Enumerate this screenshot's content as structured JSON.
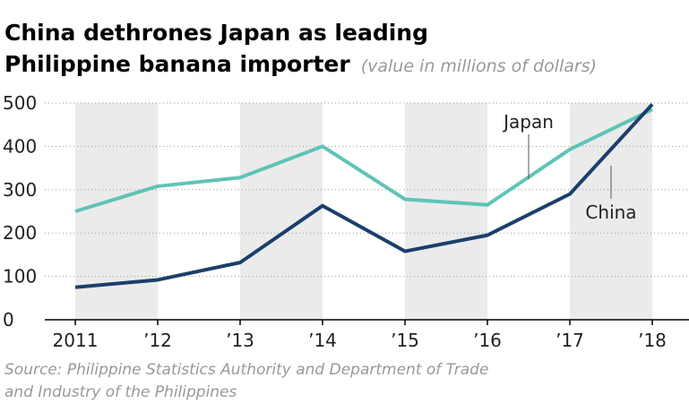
{
  "chart_data": {
    "type": "line",
    "title": [
      "China dethrones Japan as leading",
      "Philippine banana importer"
    ],
    "subtitle": "(value in millions of dollars)",
    "source": [
      "Source: Philippine Statistics Authority and Department of Trade",
      "and Industry of the Philippines"
    ],
    "categories": [
      "2011",
      "’12",
      "’13",
      "’14",
      "’15",
      "’16",
      "’17",
      "’18"
    ],
    "series": [
      {
        "name": "Japan",
        "color": "#5ec4b6",
        "values": [
          250,
          308,
          328,
          400,
          278,
          265,
          393,
          485
        ]
      },
      {
        "name": "China",
        "color": "#1b3f6b",
        "values": [
          75,
          92,
          132,
          263,
          158,
          195,
          290,
          497
        ]
      }
    ],
    "ylim": [
      0,
      500
    ],
    "yticks": [
      0,
      100,
      200,
      300,
      400,
      500
    ],
    "grid": true
  }
}
